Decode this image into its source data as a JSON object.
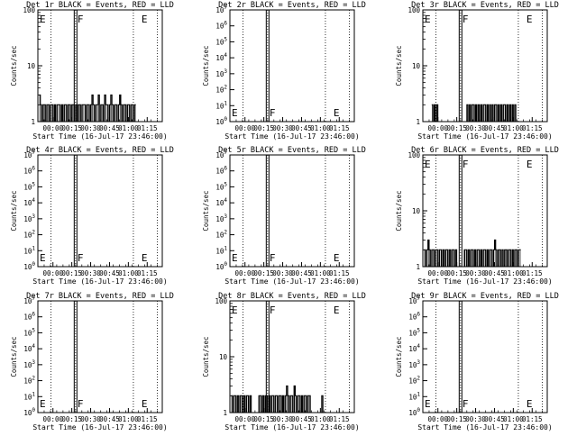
{
  "chart_data": [
    {
      "type": "line",
      "title": "Det 1r BLACK = Events, RED = LLD",
      "xlabel": "Start Time (16-Jul-17 23:46:00)",
      "ylabel": "Counts/sec",
      "x_unit": "minutes after 00:00",
      "xlim": [
        -12,
        87
      ],
      "xticks": [
        "00:00",
        "00:15",
        "00:30",
        "00:45",
        "01:00",
        "01:15"
      ],
      "yscale": "log",
      "ylim": [
        1,
        100
      ],
      "yticks": [
        "1",
        "10",
        "100"
      ],
      "markers": {
        "E_left": -12,
        "F": 18,
        "E_right": 69
      },
      "dotted_lines": [
        -1.5,
        18,
        64,
        83
      ],
      "series": [
        {
          "color": "#000000",
          "x": [
            -11,
            -10,
            -9,
            -8,
            -7,
            -6,
            -5,
            -4,
            -3,
            -2,
            -1,
            0,
            1,
            2,
            3,
            4,
            5,
            6,
            7,
            8,
            9,
            10,
            11,
            12,
            13,
            14,
            15,
            16,
            17,
            18,
            19,
            20,
            21,
            22,
            23,
            24,
            25,
            26,
            27,
            28,
            29,
            30,
            31,
            32,
            33,
            34,
            35,
            36,
            37,
            38,
            39,
            40,
            41,
            42,
            43,
            44,
            45,
            46,
            47,
            48,
            49,
            50,
            51,
            52,
            53,
            54,
            55,
            56,
            57,
            58,
            59,
            60,
            61,
            62,
            63,
            64,
            65
          ],
          "y": [
            3,
            2,
            1,
            2,
            2,
            1,
            2,
            2,
            1,
            2,
            2,
            1,
            2,
            1,
            2,
            2,
            2,
            1,
            2,
            1,
            2,
            2,
            1,
            2,
            2,
            1,
            2,
            2,
            1,
            2,
            1,
            2,
            2,
            1,
            2,
            2,
            2,
            1,
            2,
            2,
            1,
            2,
            3,
            2,
            1,
            2,
            2,
            3,
            1,
            2,
            2,
            1,
            3,
            2,
            2,
            1,
            2,
            3,
            2,
            1,
            2,
            2,
            1,
            2,
            3,
            2,
            1,
            2,
            2,
            1,
            2,
            2,
            1,
            2,
            2,
            1,
            2
          ]
        }
      ]
    },
    {
      "type": "line",
      "title": "Det 2r BLACK = Events, RED = LLD",
      "xlabel": "Start Time (16-Jul-17 23:46:00)",
      "ylabel": "Counts/sec",
      "xlim": [
        -12,
        87
      ],
      "xticks": [
        "00:00",
        "00:15",
        "00:30",
        "00:45",
        "01:00",
        "01:15"
      ],
      "yscale": "log",
      "ylim": [
        1,
        10000000
      ],
      "yticks": [
        "10^0",
        "10^1",
        "10^2",
        "10^3",
        "10^4",
        "10^5",
        "10^6",
        "10^7"
      ],
      "markers": {
        "E_left": -12,
        "F": 18,
        "E_right": 69
      },
      "dotted_lines": [
        -1.5,
        18,
        64,
        83
      ],
      "series": []
    },
    {
      "type": "line",
      "title": "Det 3r BLACK = Events, RED = LLD",
      "xlabel": "Start Time (16-Jul-17 23:46:00)",
      "ylabel": "Counts/sec",
      "xlim": [
        -12,
        87
      ],
      "xticks": [
        "00:00",
        "00:15",
        "00:30",
        "00:45",
        "01:00",
        "01:15"
      ],
      "yscale": "log",
      "ylim": [
        1,
        100
      ],
      "yticks": [
        "1",
        "10",
        "100"
      ],
      "markers": {
        "E_left": -12,
        "F": 18,
        "E_right": 69
      },
      "dotted_lines": [
        -1.5,
        18,
        64,
        83
      ],
      "series": [
        {
          "color": "#000000",
          "x": [
            -5,
            -4,
            -3,
            -2,
            -1,
            0,
            1,
            2,
            3,
            4,
            5,
            6,
            7,
            8,
            9,
            10,
            11,
            12,
            13,
            14,
            15,
            16,
            17,
            18,
            19,
            20,
            21,
            22,
            23,
            24,
            25,
            26,
            27,
            28,
            29,
            30,
            31,
            32,
            33,
            34,
            35,
            36,
            37,
            38,
            39,
            40,
            41,
            42,
            43,
            44,
            45,
            46,
            47,
            48,
            49,
            50,
            51,
            52,
            53,
            54,
            55,
            56,
            57,
            58,
            59,
            60,
            61,
            62
          ],
          "y": [
            2,
            1,
            2,
            1,
            2,
            1,
            1,
            1,
            1,
            1,
            1,
            1,
            1,
            1,
            1,
            1,
            1,
            1,
            1,
            1,
            1,
            1,
            1,
            1,
            1,
            1,
            1,
            1,
            2,
            1,
            2,
            1,
            2,
            2,
            1,
            2,
            1,
            2,
            1,
            2,
            1,
            2,
            2,
            1,
            2,
            1,
            2,
            1,
            2,
            1,
            2,
            2,
            1,
            2,
            1,
            2,
            1,
            2,
            2,
            1,
            2,
            1,
            2,
            1,
            2,
            1,
            2,
            1
          ]
        }
      ]
    },
    {
      "type": "line",
      "title": "Det 4r BLACK = Events, RED = LLD",
      "xlabel": "Start Time (16-Jul-17 23:46:00)",
      "ylabel": "Counts/sec",
      "xlim": [
        -12,
        87
      ],
      "xticks": [
        "00:00",
        "00:15",
        "00:30",
        "00:45",
        "01:00",
        "01:15"
      ],
      "yscale": "log",
      "ylim": [
        1,
        10000000
      ],
      "yticks": [
        "10^0",
        "10^1",
        "10^2",
        "10^3",
        "10^4",
        "10^5",
        "10^6",
        "10^7"
      ],
      "markers": {
        "E_left": -12,
        "F": 18,
        "E_right": 69
      },
      "dotted_lines": [
        -1.5,
        18,
        64,
        83
      ],
      "series": []
    },
    {
      "type": "line",
      "title": "Det 5r BLACK = Events, RED = LLD",
      "xlabel": "Start Time (16-Jul-17 23:46:00)",
      "ylabel": "Counts/sec",
      "xlim": [
        -12,
        87
      ],
      "xticks": [
        "00:00",
        "00:15",
        "00:30",
        "00:45",
        "01:00",
        "01:15"
      ],
      "yscale": "log",
      "ylim": [
        1,
        10000000
      ],
      "yticks": [
        "10^0",
        "10^1",
        "10^2",
        "10^3",
        "10^4",
        "10^5",
        "10^6",
        "10^7"
      ],
      "markers": {
        "E_left": -12,
        "F": 18,
        "E_right": 69
      },
      "dotted_lines": [
        -1.5,
        18,
        64,
        83
      ],
      "series": []
    },
    {
      "type": "line",
      "title": "Det 6r BLACK = Events, RED = LLD",
      "xlabel": "Start Time (16-Jul-17 23:46:00)",
      "ylabel": "Counts/sec",
      "xlim": [
        -12,
        87
      ],
      "xticks": [
        "00:00",
        "00:15",
        "00:30",
        "00:45",
        "01:00",
        "01:15"
      ],
      "yscale": "log",
      "ylim": [
        1,
        100
      ],
      "yticks": [
        "1",
        "10",
        "100"
      ],
      "markers": {
        "E_left": -12,
        "F": 18,
        "E_right": 69
      },
      "dotted_lines": [
        -1.5,
        18,
        64,
        83
      ],
      "series": [
        {
          "color": "#000000",
          "x": [
            -11,
            -10,
            -9,
            -8,
            -7,
            -6,
            -5,
            -4,
            -3,
            -2,
            -1,
            0,
            1,
            2,
            3,
            4,
            5,
            6,
            7,
            8,
            9,
            10,
            11,
            12,
            13,
            14,
            15,
            16,
            17,
            18,
            19,
            20,
            21,
            22,
            23,
            24,
            25,
            26,
            27,
            28,
            29,
            30,
            31,
            32,
            33,
            34,
            35,
            36,
            37,
            38,
            39,
            40,
            41,
            42,
            43,
            44,
            45,
            46,
            47,
            48,
            49,
            50,
            51,
            52,
            53,
            54,
            55,
            56,
            57,
            58,
            59,
            60,
            61,
            62,
            63,
            64,
            65
          ],
          "y": [
            2,
            1,
            2,
            3,
            2,
            1,
            2,
            2,
            1,
            2,
            2,
            1,
            2,
            2,
            1,
            2,
            1,
            2,
            2,
            1,
            2,
            1,
            2,
            2,
            1,
            2,
            1,
            1,
            1,
            1,
            1,
            1,
            2,
            2,
            1,
            2,
            1,
            2,
            2,
            1,
            2,
            1,
            2,
            2,
            1,
            2,
            1,
            2,
            2,
            1,
            2,
            1,
            2,
            2,
            1,
            2,
            3,
            2,
            1,
            2,
            2,
            1,
            2,
            1,
            2,
            2,
            1,
            2,
            2,
            1,
            2,
            1,
            2,
            2,
            1,
            2,
            2
          ]
        }
      ]
    },
    {
      "type": "line",
      "title": "Det 7r BLACK = Events, RED = LLD",
      "xlabel": "Start Time (16-Jul-17 23:46:00)",
      "ylabel": "Counts/sec",
      "xlim": [
        -12,
        87
      ],
      "xticks": [
        "00:00",
        "00:15",
        "00:30",
        "00:45",
        "01:00",
        "01:15"
      ],
      "yscale": "log",
      "ylim": [
        1,
        10000000
      ],
      "yticks": [
        "10^0",
        "10^1",
        "10^2",
        "10^3",
        "10^4",
        "10^5",
        "10^6",
        "10^7"
      ],
      "markers": {
        "E_left": -12,
        "F": 18,
        "E_right": 69
      },
      "dotted_lines": [
        -1.5,
        18,
        64,
        83
      ],
      "series": []
    },
    {
      "type": "line",
      "title": "Det 8r BLACK = Events, RED = LLD",
      "xlabel": "Start Time (16-Jul-17 23:46:00)",
      "ylabel": "Counts/sec",
      "xlim": [
        -12,
        87
      ],
      "xticks": [
        "00:00",
        "00:15",
        "00:30",
        "00:45",
        "01:00",
        "01:15"
      ],
      "yscale": "log",
      "ylim": [
        1,
        100
      ],
      "yticks": [
        "1",
        "10",
        "100"
      ],
      "markers": {
        "E_left": -12,
        "F": 18,
        "E_right": 69
      },
      "dotted_lines": [
        -1.5,
        18,
        64,
        83
      ],
      "series": [
        {
          "color": "#000000",
          "x": [
            -11,
            -10,
            -9,
            -8,
            -7,
            -6,
            -5,
            -4,
            -3,
            -2,
            -1,
            0,
            1,
            2,
            3,
            4,
            5,
            6,
            7,
            8,
            9,
            10,
            11,
            12,
            13,
            14,
            15,
            16,
            17,
            18,
            19,
            20,
            21,
            22,
            23,
            24,
            25,
            26,
            27,
            28,
            29,
            30,
            31,
            32,
            33,
            34,
            35,
            36,
            37,
            38,
            39,
            40,
            41,
            42,
            43,
            44,
            45,
            46,
            47,
            48,
            49,
            50,
            51,
            52,
            53,
            54,
            55,
            56,
            57,
            58,
            59,
            60,
            61,
            62,
            63
          ],
          "y": [
            2,
            1,
            2,
            2,
            1,
            2,
            1,
            2,
            2,
            1,
            2,
            1,
            2,
            2,
            1,
            2,
            1,
            1,
            1,
            1,
            1,
            1,
            2,
            2,
            1,
            2,
            1,
            2,
            2,
            1,
            2,
            1,
            2,
            2,
            1,
            2,
            2,
            1,
            2,
            2,
            1,
            2,
            1,
            2,
            3,
            2,
            1,
            2,
            2,
            1,
            3,
            2,
            1,
            2,
            2,
            1,
            2,
            1,
            2,
            2,
            1,
            2,
            2,
            1,
            1,
            1,
            1,
            1,
            1,
            1,
            1,
            1,
            2,
            1,
            1
          ]
        }
      ]
    },
    {
      "type": "line",
      "title": "Det 9r BLACK = Events, RED = LLD",
      "xlabel": "Start Time (16-Jul-17 23:46:00)",
      "ylabel": "Counts/sec",
      "xlim": [
        -12,
        87
      ],
      "xticks": [
        "00:00",
        "00:15",
        "00:30",
        "00:45",
        "01:00",
        "01:15"
      ],
      "yscale": "log",
      "ylim": [
        1,
        10000000
      ],
      "yticks": [
        "10^0",
        "10^1",
        "10^2",
        "10^3",
        "10^4",
        "10^5",
        "10^6",
        "10^7"
      ],
      "markers": {
        "E_left": -12,
        "F": 18,
        "E_right": 69
      },
      "dotted_lines": [
        -1.5,
        18,
        64,
        83
      ],
      "series": []
    }
  ]
}
